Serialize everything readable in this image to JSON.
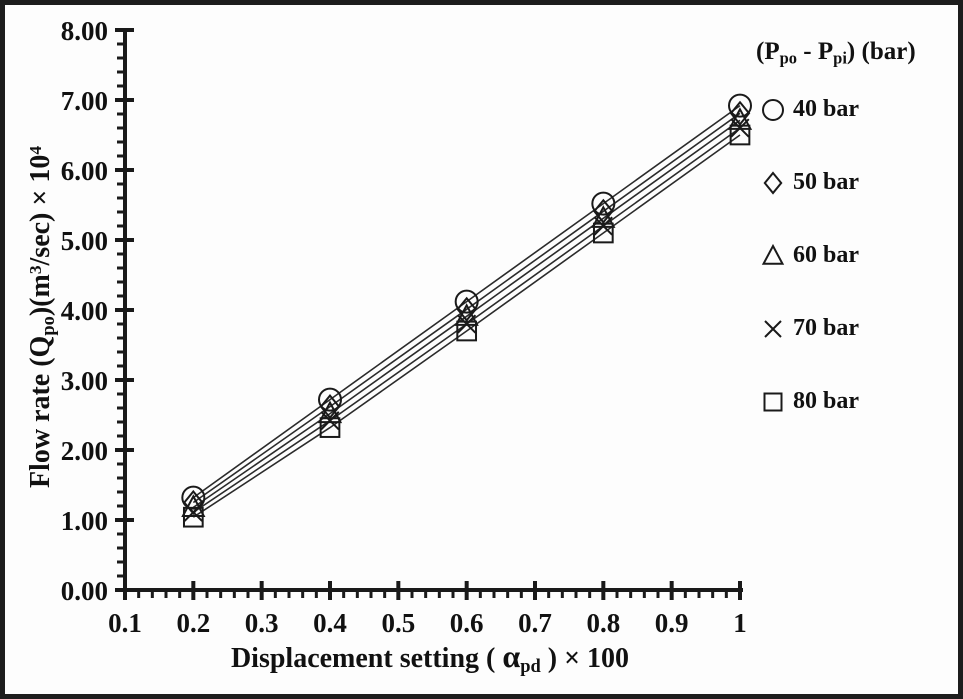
{
  "chart_data": {
    "type": "scatter",
    "title": "",
    "x": [
      0.2,
      0.4,
      0.6,
      0.8,
      1.0
    ],
    "series": [
      {
        "name": "40 bar",
        "marker": "circle",
        "values": [
          1.32,
          2.72,
          4.12,
          5.52,
          6.92
        ]
      },
      {
        "name": "50 bar",
        "marker": "diamond",
        "values": [
          1.25,
          2.62,
          4.01,
          5.41,
          6.81
        ]
      },
      {
        "name": "60 bar",
        "marker": "triangle",
        "values": [
          1.18,
          2.52,
          3.91,
          5.31,
          6.71
        ]
      },
      {
        "name": "70 bar",
        "marker": "cross",
        "values": [
          1.11,
          2.42,
          3.8,
          5.2,
          6.6
        ]
      },
      {
        "name": "80 bar",
        "marker": "square",
        "values": [
          1.04,
          2.32,
          3.7,
          5.1,
          6.5
        ]
      }
    ],
    "x_ticks": [
      "0.1",
      "0.2",
      "0.3",
      "0.4",
      "0.5",
      "0.6",
      "0.7",
      "0.8",
      "0.9",
      "1"
    ],
    "y_ticks": [
      "0.00",
      "1.00",
      "2.00",
      "3.00",
      "4.00",
      "5.00",
      "6.00",
      "7.00",
      "8.00"
    ],
    "x_range": [
      0.1,
      1.0
    ],
    "y_range": [
      0.0,
      8.0
    ],
    "x_minor_step": 0.02,
    "y_minor_step": 0.2,
    "grid": false,
    "legend_position": "right",
    "xlabel": {
      "p1": "Displacement setting ( ",
      "symbol": "α",
      "symbol_sub": "pd",
      "p2": " ) × 100"
    },
    "ylabel": {
      "p1": "Flow rate (Q",
      "sub1": "po",
      "p2": ")(m",
      "sup1": "3",
      "p3": "/sec) × 10",
      "sup2": "4"
    },
    "legend_title": {
      "p1": "(P",
      "sub1": "po",
      "p2": " - P",
      "sub2": "pi",
      "p3": ") (bar)"
    },
    "colors": {
      "axis": "#1a1a1a",
      "line": "#2b2b2b",
      "marker": "#1a1a1a",
      "text": "#111111",
      "border": "#1d1d1d",
      "background": "#fdfdfd"
    }
  }
}
